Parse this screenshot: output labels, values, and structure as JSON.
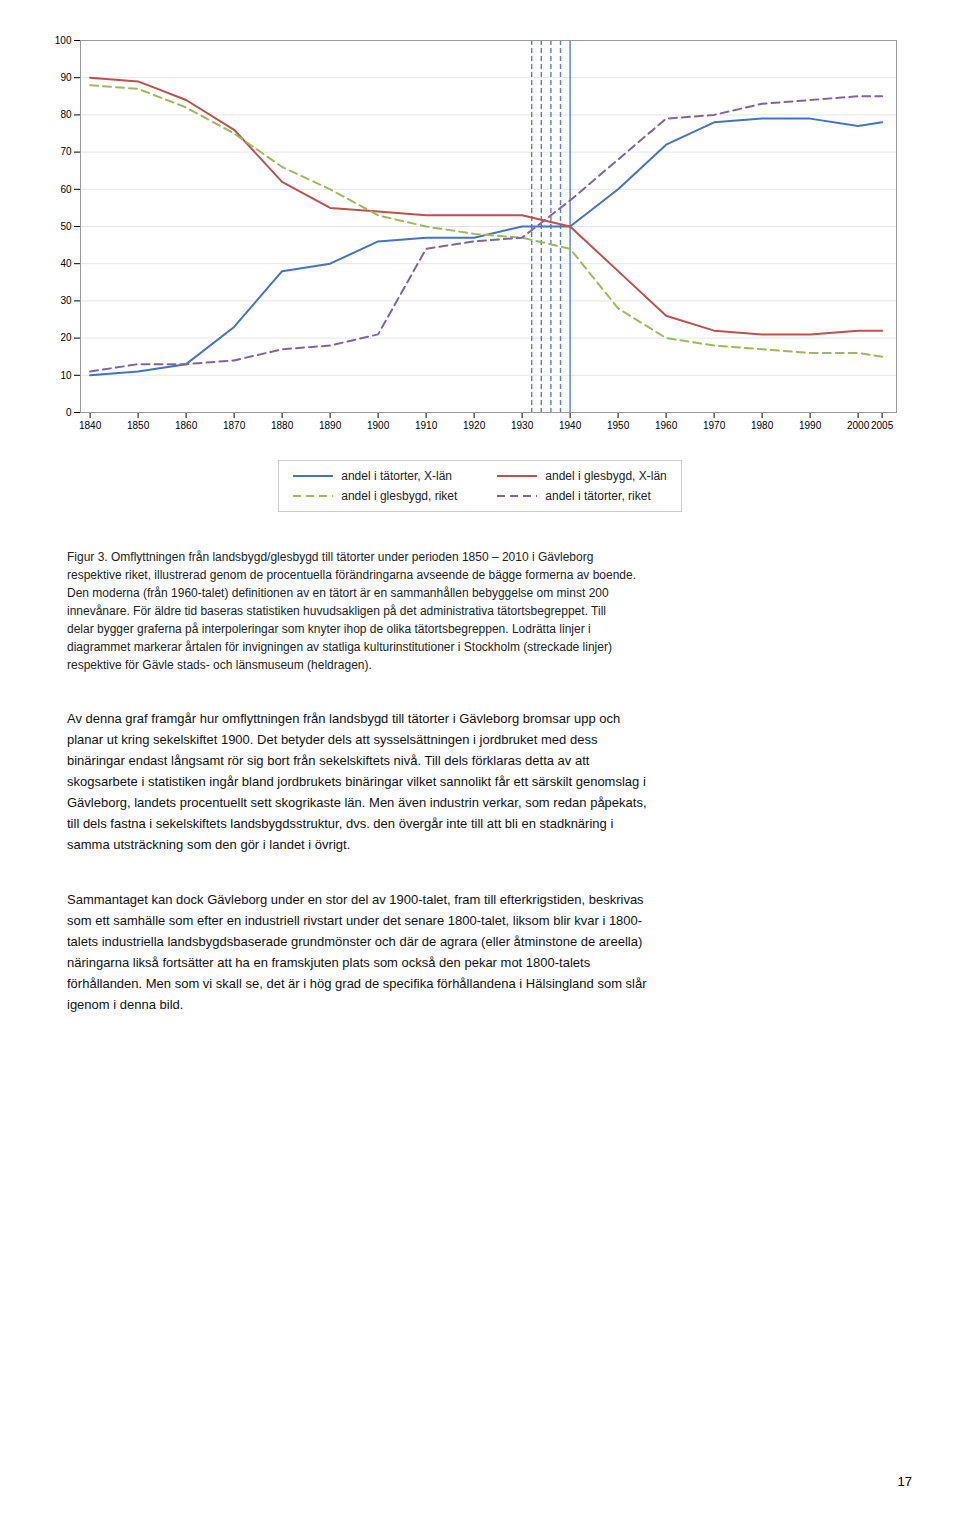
{
  "chart_data": {
    "type": "line",
    "x": [
      1840,
      1850,
      1860,
      1870,
      1880,
      1890,
      1900,
      1910,
      1920,
      1930,
      1940,
      1950,
      1960,
      1970,
      1980,
      1990,
      2000,
      2005
    ],
    "series": [
      {
        "name": "andel i tätorter, X-län",
        "color": "#4472C4",
        "line_style": "solid",
        "values": [
          10,
          11,
          13,
          23,
          38,
          40,
          46,
          47,
          47,
          50,
          50,
          60,
          72,
          78,
          79,
          79,
          77,
          78
        ]
      },
      {
        "name": "andel i glesbygd, X-län",
        "color": "#C0504D",
        "line_style": "solid",
        "values": [
          90,
          89,
          84,
          76,
          62,
          55,
          54,
          53,
          53,
          53,
          50,
          38,
          26,
          22,
          21,
          21,
          22,
          22
        ]
      },
      {
        "name": "andel i glesbygd, riket",
        "color": "#9BBB59",
        "line_style": "dashed",
        "values": [
          88,
          87,
          82,
          75,
          66,
          60,
          53,
          50,
          48,
          47,
          44,
          28,
          20,
          18,
          17,
          16,
          16,
          15
        ]
      },
      {
        "name": "andel i tätorter, riket",
        "color": "#8064A2",
        "line_style": "dashed",
        "values": [
          11,
          13,
          13,
          14,
          17,
          18,
          21,
          44,
          46,
          47,
          57,
          68,
          79,
          80,
          83,
          84,
          85,
          85
        ]
      }
    ],
    "vlines": [
      {
        "x": 1932,
        "line_style": "dashed",
        "color": "#4472C4"
      },
      {
        "x": 1934,
        "line_style": "dashed",
        "color": "#4472C4"
      },
      {
        "x": 1936,
        "line_style": "dashed",
        "color": "#4472C4"
      },
      {
        "x": 1938,
        "line_style": "dashed",
        "color": "#4472C4"
      },
      {
        "x": 1940,
        "line_style": "solid",
        "color": "#4472C4"
      }
    ],
    "xlim": [
      1838,
      2008
    ],
    "xticks": [
      1840,
      1850,
      1860,
      1870,
      1880,
      1890,
      1900,
      1910,
      1920,
      1930,
      1940,
      1950,
      1960,
      1970,
      1980,
      1990,
      2000,
      2005
    ],
    "ylim": [
      0,
      100
    ],
    "yticks": [
      0,
      10,
      20,
      30,
      40,
      50,
      60,
      70,
      80,
      90,
      100
    ],
    "grid": true,
    "legend": "bottom",
    "caption": [
      "Figur 3. Omflyttningen från landsbygd/glesbygd till tätorter under perioden 1850 – 2010 i Gävleborg",
      "respektive riket, illustrerad genom de procentuella förändringarna avseende de bägge formerna av boende.",
      "Den moderna (från 1960-talet) definitionen av en tätort är en sammanhållen bebyggelse om minst 200",
      "innevånare. För äldre tid baseras statistiken huvudsakligen på det administrativa tätortsbegreppet. Till",
      "delar bygger graferna på interpoleringar som knyter ihop de olika tätortsbegreppen. Lodrätta linjer i",
      "diagrammet markerar årtalen för invigningen av statliga kulturinstitutioner i Stockholm (streckade linjer)",
      "respektive för Gävle stads- och länsmuseum (heldragen)."
    ],
    "paragraphs": [
      [
        "Av denna graf framgår hur omflyttningen från landsbygd till tätorter i Gävleborg bromsar upp och",
        "planar ut kring sekelskiftet 1900. Det betyder dels att sysselsättningen i jordbruket med dess",
        "binäringar endast långsamt rör sig bort från sekelskiftets nivå. Till dels förklaras detta av att",
        "skogsarbete i statistiken ingår bland jordbrukets binäringar vilket sannolikt får ett särskilt genomslag i",
        "Gävleborg, landets procentuellt sett skogrikaste län. Men även industrin verkar, som redan påpekats,",
        "till dels fastna i sekelskiftets landsbygdsstruktur, dvs. den övergår inte till att bli en stadknäring i",
        "samma utsträckning som den gör i landet i övrigt."
      ],
      [
        "Sammantaget kan dock Gävleborg under en stor del av 1900-talet, fram till efterkrigstiden, beskrivas",
        "som ett samhälle som efter en industriell rivstart under det senare 1800-talet, liksom blir kvar i 1800-",
        "talets industriella landsbygdsbaserade grundmönster och där de agrara (eller åtminstone de areella)",
        "näringarna likså fortsätter att ha en framskjuten plats som också den pekar mot 1800-talets",
        "förhållanden. Men som vi skall se, det är i hög grad de specifika förhållandena i Hälsingland som slår",
        "igenom i denna bild."
      ]
    ],
    "page_number": "17"
  }
}
